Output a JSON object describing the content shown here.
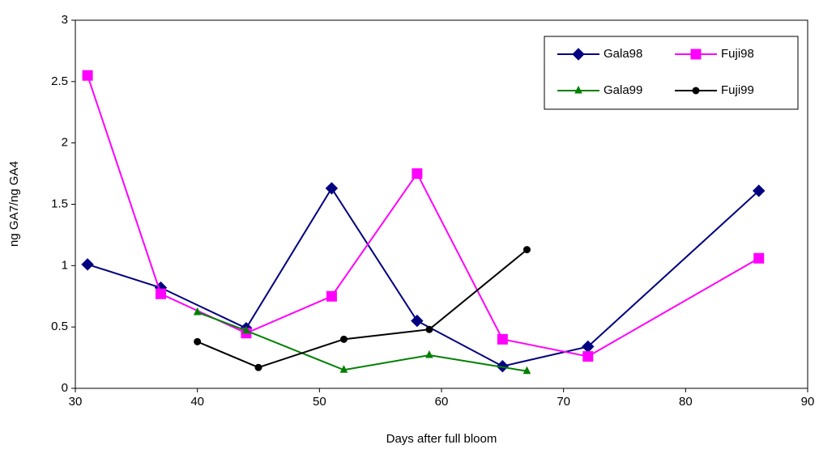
{
  "chart_data": {
    "type": "line",
    "x_label": "Days after full bloom",
    "y_label": "ng GA7/ng GA4",
    "xlim": [
      30,
      90
    ],
    "xticks": [
      30,
      40,
      50,
      60,
      70,
      80,
      90
    ],
    "ylim": [
      0,
      3
    ],
    "yticks": [
      0,
      0.5,
      1,
      1.5,
      2,
      2.5,
      3
    ],
    "grid": false,
    "legend": "upper right",
    "series": [
      {
        "name": "Gala98",
        "color": "#000080",
        "marker": "diamond",
        "x": [
          31,
          37,
          44,
          51,
          58,
          65,
          72,
          86
        ],
        "values": [
          1.01,
          0.82,
          0.49,
          1.63,
          0.55,
          0.18,
          0.34,
          1.61
        ]
      },
      {
        "name": "Fuji98",
        "color": "#ff00ff",
        "marker": "square",
        "x": [
          31,
          37,
          44,
          51,
          58,
          65,
          72,
          86
        ],
        "values": [
          2.55,
          0.77,
          0.45,
          0.75,
          1.75,
          0.4,
          0.26,
          1.06
        ]
      },
      {
        "name": "Gala99",
        "color": "#008000",
        "marker": "triangle",
        "x": [
          40,
          44,
          52,
          59,
          67
        ],
        "values": [
          0.62,
          0.47,
          0.15,
          0.27,
          0.14
        ]
      },
      {
        "name": "Fuji99",
        "color": "#000000",
        "marker": "circle",
        "x": [
          40,
          45,
          52,
          59,
          67
        ],
        "values": [
          0.38,
          0.17,
          0.4,
          0.48,
          1.13
        ]
      }
    ]
  }
}
